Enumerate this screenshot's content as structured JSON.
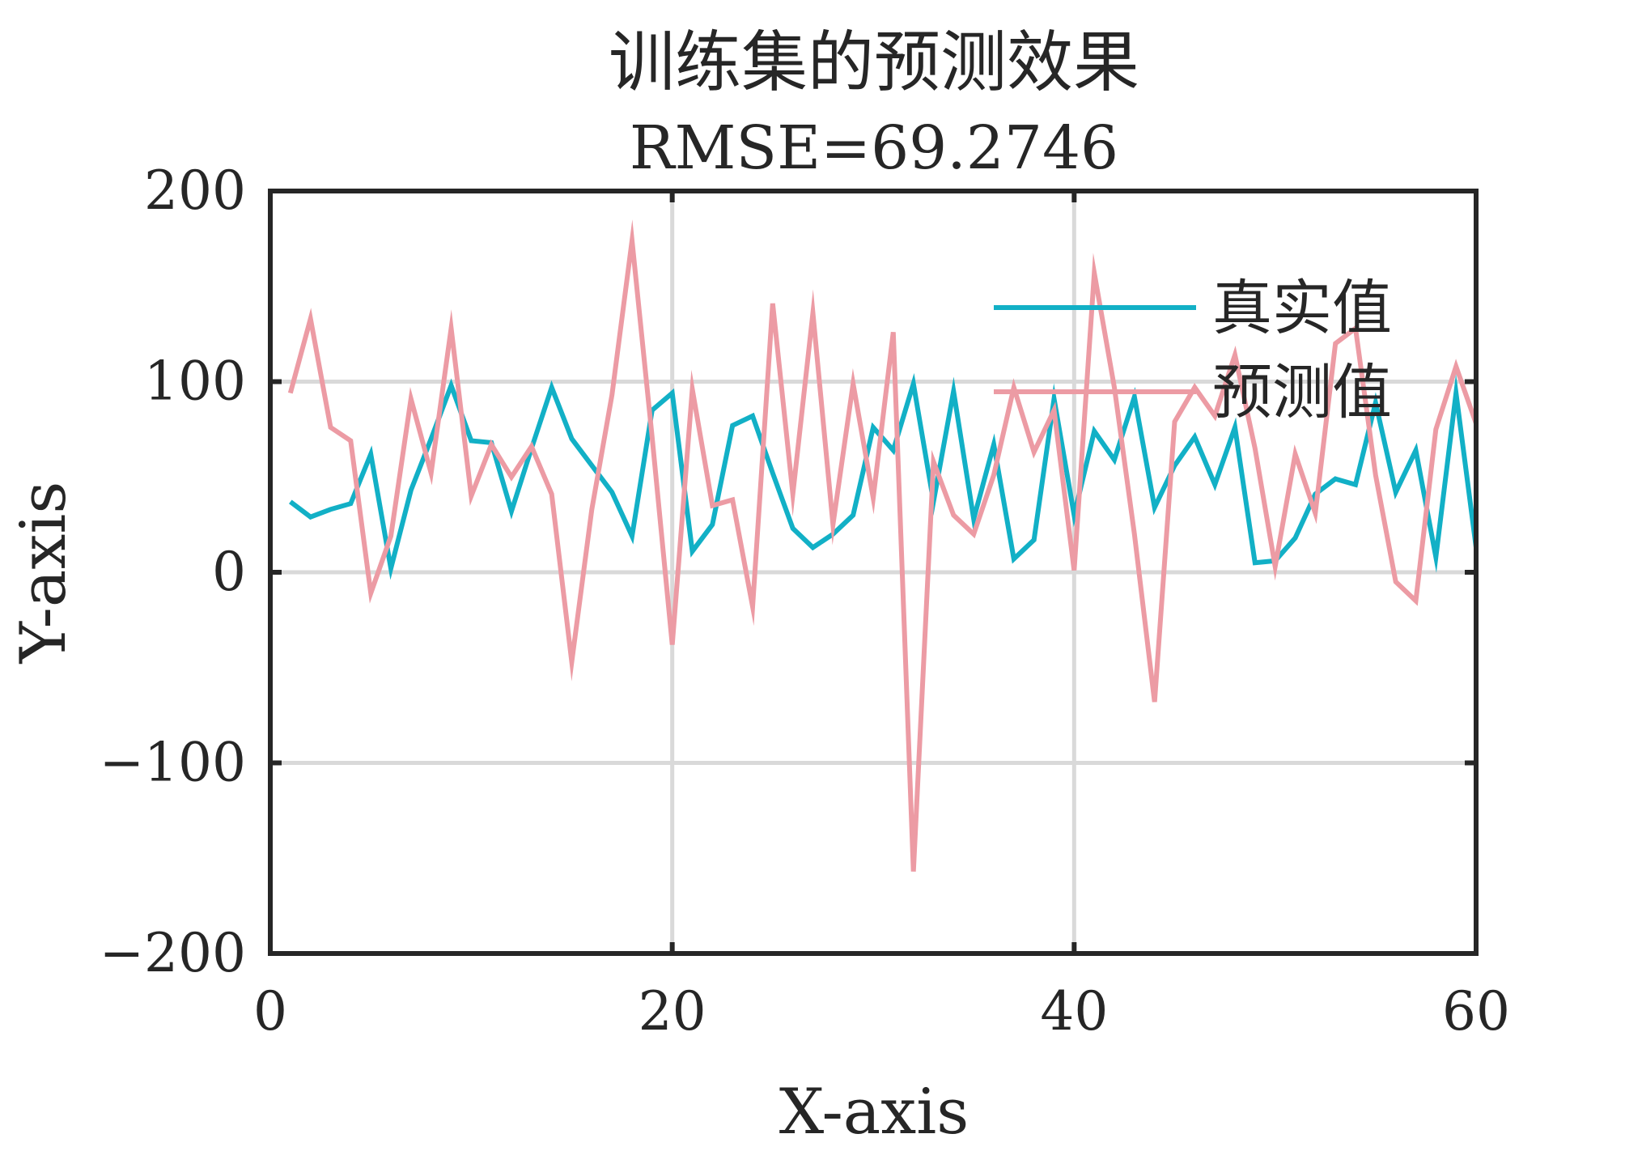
{
  "chart_data": {
    "type": "line",
    "title": "训练集的预测效果",
    "subtitle": "RMSE=69.2746",
    "xlabel": "X-axis",
    "ylabel": "Y-axis",
    "xlim": [
      0,
      60
    ],
    "ylim": [
      -200,
      200
    ],
    "xticks": [
      0,
      20,
      40,
      60
    ],
    "yticks": [
      -200,
      -100,
      0,
      100,
      200
    ],
    "grid": true,
    "legend_position": "top-right",
    "series": [
      {
        "name": "真实值",
        "color": "#12B0C6",
        "x": [
          1,
          2,
          3,
          4,
          5,
          6,
          7,
          8,
          9,
          10,
          11,
          12,
          13,
          14,
          15,
          16,
          17,
          18,
          19,
          20,
          21,
          22,
          23,
          24,
          25,
          26,
          27,
          28,
          29,
          30,
          31,
          32,
          33,
          34,
          35,
          36,
          37,
          38,
          39,
          40,
          41,
          42,
          43,
          44,
          45,
          46,
          47,
          48,
          49,
          50,
          51,
          52,
          53,
          54,
          55,
          56,
          57,
          58,
          59,
          60
        ],
        "values": [
          37,
          29,
          33,
          36,
          62,
          2,
          43,
          70,
          98,
          69,
          68,
          32,
          65,
          97,
          70,
          56,
          42,
          19,
          85,
          94,
          11,
          25,
          77,
          82,
          52,
          23,
          13,
          20,
          30,
          76,
          64,
          99,
          37,
          95,
          28,
          67,
          7,
          17,
          91,
          30,
          74,
          59,
          92,
          34,
          56,
          71,
          46,
          76,
          5,
          6,
          18,
          41,
          49,
          46,
          89,
          42,
          64,
          8,
          94,
          13
        ]
      },
      {
        "name": "预测值",
        "color": "#EC9BA4",
        "x": [
          1,
          2,
          3,
          4,
          5,
          6,
          7,
          8,
          9,
          10,
          11,
          12,
          13,
          14,
          15,
          16,
          17,
          18,
          19,
          20,
          21,
          22,
          23,
          24,
          25,
          26,
          27,
          28,
          29,
          30,
          31,
          32,
          33,
          34,
          35,
          36,
          37,
          38,
          39,
          40,
          41,
          42,
          43,
          44,
          45,
          46,
          47,
          48,
          49,
          50,
          51,
          52,
          53,
          54,
          55,
          56,
          57,
          58,
          59,
          60
        ],
        "values": [
          94,
          133,
          76,
          69,
          -11,
          19,
          91,
          52,
          128,
          40,
          67,
          50,
          66,
          41,
          -47,
          33,
          93,
          174,
          71,
          -38,
          96,
          35,
          38,
          -18,
          141,
          41,
          136,
          25,
          99,
          39,
          126,
          -157,
          58,
          30,
          20,
          51,
          97,
          63,
          85,
          1,
          157,
          97,
          20,
          -68,
          79,
          97,
          82,
          114,
          65,
          3,
          62,
          31,
          120,
          128,
          51,
          -5,
          -15,
          75,
          108,
          78
        ]
      }
    ]
  }
}
